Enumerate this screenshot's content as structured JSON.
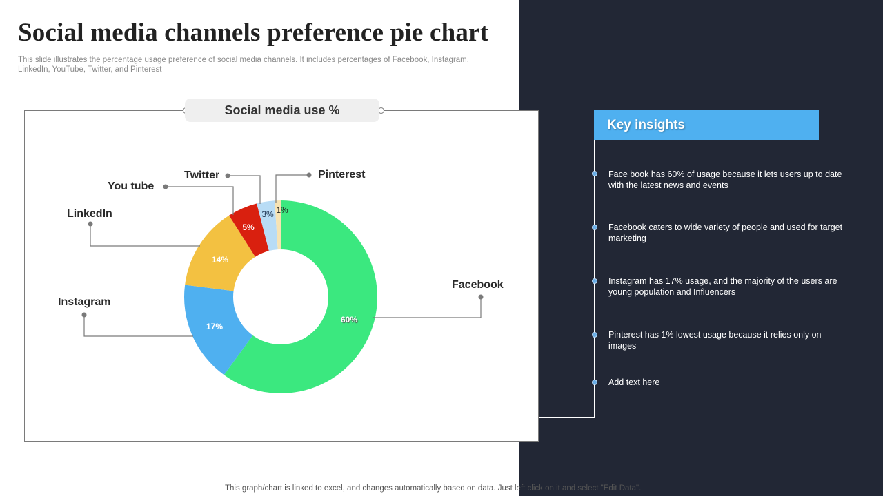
{
  "page": {
    "title": "Social media channels preference pie chart",
    "subtitle": "This slide illustrates the percentage usage preference of social media channels. It includes percentages of Facebook, Instagram, LinkedIn, YouTube, Twitter, and Pinterest",
    "footer": "This graph/chart is linked to excel, and changes automatically based on data. Just left click on it and select \"Edit Data\"."
  },
  "chart": {
    "title": "Social media use %",
    "labels": {
      "facebook": "Facebook",
      "instagram": "Instagram",
      "linkedin": "LinkedIn",
      "youtube": "You tube",
      "twitter": "Twitter",
      "pinterest": "Pinterest"
    },
    "value_labels": {
      "facebook": "60%",
      "instagram": "17%",
      "linkedin": "14%",
      "youtube": "5%",
      "twitter": "3%",
      "pinterest": "1%"
    }
  },
  "chart_data": {
    "type": "pie",
    "subtype": "donut",
    "title": "Social media use %",
    "categories": [
      "Facebook",
      "Instagram",
      "LinkedIn",
      "You tube",
      "Twitter",
      "Pinterest"
    ],
    "values": [
      60,
      17,
      14,
      5,
      3,
      1
    ],
    "unit": "%",
    "colors": [
      "#3be87f",
      "#4fb0f0",
      "#f3c141",
      "#d9200f",
      "#b8dcf5",
      "#f7e3b3"
    ],
    "start_angle": "12 o'clock",
    "direction": "clockwise",
    "legend": "callout labels with leader lines"
  },
  "insights": {
    "header": "Key insights",
    "items": [
      "Face book has 60% of usage because it lets users up to date with the latest news and events",
      "Facebook caters to wide variety of people and used for target marketing",
      "Instagram has 17% usage, and the majority of the users are young population and Influencers",
      "Pinterest has 1% lowest usage because it relies only on images",
      "Add text here"
    ]
  },
  "colors": {
    "dark_panel": "#222735",
    "accent_blue": "#4fb0f0",
    "bullet": "#6aaee6"
  }
}
